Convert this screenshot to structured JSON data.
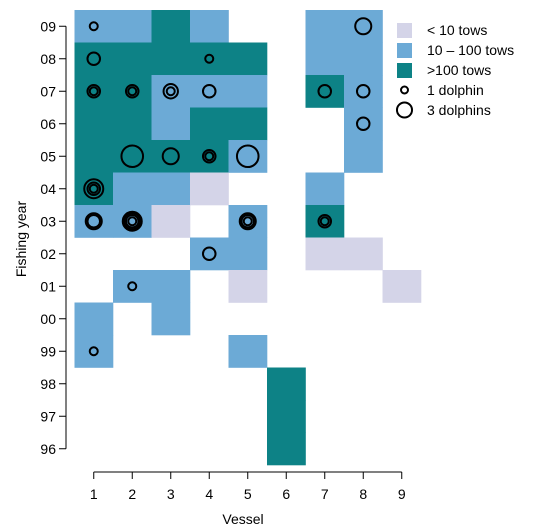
{
  "chart_data": {
    "type": "heatmap",
    "title": "",
    "xlabel": "Vessel",
    "ylabel": "Fishing year",
    "x_categories": [
      "1",
      "2",
      "3",
      "4",
      "5",
      "6",
      "7",
      "8",
      "9"
    ],
    "y_categories": [
      "96",
      "97",
      "98",
      "99",
      "00",
      "01",
      "02",
      "03",
      "04",
      "05",
      "06",
      "07",
      "08",
      "09"
    ],
    "tow_levels": [
      {
        "level": 1,
        "label": "< 10 tows",
        "color": "#d4d4e8"
      },
      {
        "level": 2,
        "label": "10 – 100 tows",
        "color": "#6caad6"
      },
      {
        "level": 3,
        "label": ">100 tows",
        "color": "#0d8286"
      }
    ],
    "cells": [
      {
        "vessel": 1,
        "year": "09",
        "level": 2
      },
      {
        "vessel": 2,
        "year": "09",
        "level": 2
      },
      {
        "vessel": 3,
        "year": "09",
        "level": 3
      },
      {
        "vessel": 4,
        "year": "09",
        "level": 2
      },
      {
        "vessel": 7,
        "year": "09",
        "level": 2
      },
      {
        "vessel": 8,
        "year": "09",
        "level": 2
      },
      {
        "vessel": 1,
        "year": "08",
        "level": 3
      },
      {
        "vessel": 2,
        "year": "08",
        "level": 3
      },
      {
        "vessel": 3,
        "year": "08",
        "level": 3
      },
      {
        "vessel": 4,
        "year": "08",
        "level": 3
      },
      {
        "vessel": 5,
        "year": "08",
        "level": 3
      },
      {
        "vessel": 7,
        "year": "08",
        "level": 2
      },
      {
        "vessel": 8,
        "year": "08",
        "level": 2
      },
      {
        "vessel": 1,
        "year": "07",
        "level": 3
      },
      {
        "vessel": 2,
        "year": "07",
        "level": 3
      },
      {
        "vessel": 3,
        "year": "07",
        "level": 2
      },
      {
        "vessel": 4,
        "year": "07",
        "level": 2
      },
      {
        "vessel": 5,
        "year": "07",
        "level": 2
      },
      {
        "vessel": 7,
        "year": "07",
        "level": 3
      },
      {
        "vessel": 8,
        "year": "07",
        "level": 2
      },
      {
        "vessel": 1,
        "year": "06",
        "level": 3
      },
      {
        "vessel": 2,
        "year": "06",
        "level": 3
      },
      {
        "vessel": 3,
        "year": "06",
        "level": 2
      },
      {
        "vessel": 4,
        "year": "06",
        "level": 3
      },
      {
        "vessel": 5,
        "year": "06",
        "level": 3
      },
      {
        "vessel": 8,
        "year": "06",
        "level": 2
      },
      {
        "vessel": 1,
        "year": "05",
        "level": 3
      },
      {
        "vessel": 2,
        "year": "05",
        "level": 3
      },
      {
        "vessel": 3,
        "year": "05",
        "level": 3
      },
      {
        "vessel": 4,
        "year": "05",
        "level": 3
      },
      {
        "vessel": 5,
        "year": "05",
        "level": 2
      },
      {
        "vessel": 8,
        "year": "05",
        "level": 2
      },
      {
        "vessel": 1,
        "year": "04",
        "level": 3
      },
      {
        "vessel": 2,
        "year": "04",
        "level": 2
      },
      {
        "vessel": 3,
        "year": "04",
        "level": 2
      },
      {
        "vessel": 4,
        "year": "04",
        "level": 1
      },
      {
        "vessel": 7,
        "year": "04",
        "level": 2
      },
      {
        "vessel": 1,
        "year": "03",
        "level": 2
      },
      {
        "vessel": 2,
        "year": "03",
        "level": 2
      },
      {
        "vessel": 3,
        "year": "03",
        "level": 1
      },
      {
        "vessel": 5,
        "year": "03",
        "level": 2
      },
      {
        "vessel": 7,
        "year": "03",
        "level": 3
      },
      {
        "vessel": 4,
        "year": "02",
        "level": 2
      },
      {
        "vessel": 5,
        "year": "02",
        "level": 2
      },
      {
        "vessel": 7,
        "year": "02",
        "level": 1
      },
      {
        "vessel": 8,
        "year": "02",
        "level": 1
      },
      {
        "vessel": 2,
        "year": "01",
        "level": 2
      },
      {
        "vessel": 3,
        "year": "01",
        "level": 2
      },
      {
        "vessel": 5,
        "year": "01",
        "level": 1
      },
      {
        "vessel": 9,
        "year": "01",
        "level": 1
      },
      {
        "vessel": 1,
        "year": "00",
        "level": 2
      },
      {
        "vessel": 3,
        "year": "00",
        "level": 2
      },
      {
        "vessel": 1,
        "year": "99",
        "level": 2
      },
      {
        "vessel": 5,
        "year": "99",
        "level": 2
      },
      {
        "vessel": 6,
        "year": "98",
        "level": 3
      },
      {
        "vessel": 6,
        "year": "97",
        "level": 3
      },
      {
        "vessel": 6,
        "year": "96",
        "level": 3
      }
    ],
    "dolphin_circles": [
      {
        "vessel": 1,
        "year": "09",
        "dolphins": [
          1
        ]
      },
      {
        "vessel": 8,
        "year": "09",
        "dolphins": [
          3
        ]
      },
      {
        "vessel": 1,
        "year": "08",
        "dolphins": [
          2
        ]
      },
      {
        "vessel": 4,
        "year": "08",
        "dolphins": [
          1
        ]
      },
      {
        "vessel": 1,
        "year": "07",
        "dolphins": [
          1,
          2
        ]
      },
      {
        "vessel": 2,
        "year": "07",
        "dolphins": [
          1,
          2
        ]
      },
      {
        "vessel": 3,
        "year": "07",
        "dolphins": [
          1,
          2.5
        ]
      },
      {
        "vessel": 4,
        "year": "07",
        "dolphins": [
          2
        ]
      },
      {
        "vessel": 7,
        "year": "07",
        "dolphins": [
          2
        ]
      },
      {
        "vessel": 8,
        "year": "07",
        "dolphins": [
          2
        ]
      },
      {
        "vessel": 8,
        "year": "06",
        "dolphins": [
          2
        ]
      },
      {
        "vessel": 2,
        "year": "05",
        "dolphins": [
          5
        ]
      },
      {
        "vessel": 3,
        "year": "05",
        "dolphins": [
          3
        ]
      },
      {
        "vessel": 4,
        "year": "05",
        "dolphins": [
          1,
          2
        ]
      },
      {
        "vessel": 5,
        "year": "05",
        "dolphins": [
          5
        ]
      },
      {
        "vessel": 1,
        "year": "04",
        "dolphins": [
          1,
          2,
          4
        ]
      },
      {
        "vessel": 1,
        "year": "03",
        "dolphins": [
          2,
          3
        ]
      },
      {
        "vessel": 2,
        "year": "03",
        "dolphins": [
          1,
          2,
          3,
          4
        ]
      },
      {
        "vessel": 5,
        "year": "03",
        "dolphins": [
          1,
          2,
          3
        ]
      },
      {
        "vessel": 7,
        "year": "03",
        "dolphins": [
          1,
          2
        ]
      },
      {
        "vessel": 4,
        "year": "02",
        "dolphins": [
          2
        ]
      },
      {
        "vessel": 2,
        "year": "01",
        "dolphins": [
          1
        ]
      },
      {
        "vessel": 1,
        "year": "99",
        "dolphins": [
          1
        ]
      }
    ],
    "legend": {
      "placement": "top-right",
      "entries": [
        {
          "label": "< 10 tows",
          "kind": "swatch",
          "level": 1
        },
        {
          "label": "10 – 100 tows",
          "kind": "swatch",
          "level": 2
        },
        {
          "label": ">100 tows",
          "kind": "swatch",
          "level": 3
        },
        {
          "label": "1 dolphin",
          "kind": "circle",
          "dolphins": 1
        },
        {
          "label": "3 dolphins",
          "kind": "circle",
          "dolphins": 3
        }
      ]
    },
    "grid": false
  }
}
